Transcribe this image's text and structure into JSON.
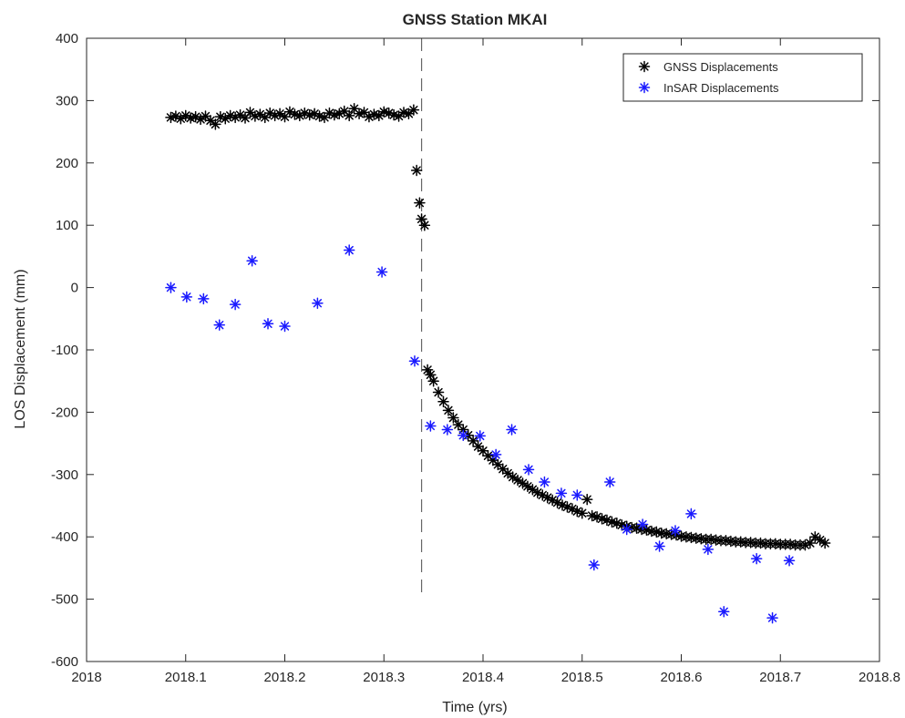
{
  "chart_data": {
    "type": "scatter",
    "title": "GNSS Station MKAI",
    "xlabel": "Time (yrs)",
    "ylabel": "LOS Displacement (mm)",
    "xlim": [
      2018,
      2018.8
    ],
    "ylim": [
      -600,
      400
    ],
    "xticks": [
      2018,
      2018.1,
      2018.2,
      2018.3,
      2018.4,
      2018.5,
      2018.6,
      2018.7,
      2018.8
    ],
    "xtick_labels": [
      "2018",
      "2018.1",
      "2018.2",
      "2018.3",
      "2018.4",
      "2018.5",
      "2018.6",
      "2018.7",
      "2018.8"
    ],
    "yticks": [
      400,
      300,
      200,
      100,
      0,
      -100,
      -200,
      -300,
      -400,
      -500,
      -600
    ],
    "ytick_labels": [
      "400",
      "300",
      "200",
      "100",
      "0",
      "-100",
      "-200",
      "-300",
      "-400",
      "-500",
      "-600"
    ],
    "grid": false,
    "box": true,
    "legend_position": "top-right",
    "marker": "asterisk",
    "reference_lines": [
      {
        "type": "vertical",
        "style": "dashed",
        "color": "#666666",
        "x": 2018.338,
        "y_range": [
          -500,
          400
        ]
      }
    ],
    "series": [
      {
        "name": "GNSS Displacements",
        "color": "#000000",
        "x": [
          2018.085,
          2018.09,
          2018.095,
          2018.1,
          2018.105,
          2018.11,
          2018.115,
          2018.12,
          2018.125,
          2018.13,
          2018.135,
          2018.14,
          2018.145,
          2018.15,
          2018.155,
          2018.16,
          2018.165,
          2018.17,
          2018.175,
          2018.18,
          2018.185,
          2018.19,
          2018.195,
          2018.2,
          2018.205,
          2018.21,
          2018.215,
          2018.22,
          2018.225,
          2018.23,
          2018.235,
          2018.24,
          2018.245,
          2018.25,
          2018.255,
          2018.26,
          2018.265,
          2018.27,
          2018.275,
          2018.28,
          2018.285,
          2018.29,
          2018.295,
          2018.3,
          2018.305,
          2018.31,
          2018.315,
          2018.32,
          2018.325,
          2018.33,
          2018.333,
          2018.336,
          2018.338,
          2018.341,
          2018.344,
          2018.347,
          2018.35,
          2018.355,
          2018.36,
          2018.365,
          2018.37,
          2018.375,
          2018.38,
          2018.385,
          2018.39,
          2018.395,
          2018.4,
          2018.405,
          2018.41,
          2018.415,
          2018.42,
          2018.425,
          2018.43,
          2018.435,
          2018.44,
          2018.445,
          2018.45,
          2018.455,
          2018.46,
          2018.465,
          2018.47,
          2018.475,
          2018.48,
          2018.485,
          2018.49,
          2018.495,
          2018.5,
          2018.505,
          2018.51,
          2018.515,
          2018.52,
          2018.525,
          2018.53,
          2018.535,
          2018.54,
          2018.545,
          2018.55,
          2018.555,
          2018.56,
          2018.565,
          2018.57,
          2018.575,
          2018.58,
          2018.585,
          2018.59,
          2018.595,
          2018.6,
          2018.605,
          2018.61,
          2018.615,
          2018.62,
          2018.625,
          2018.63,
          2018.635,
          2018.64,
          2018.645,
          2018.65,
          2018.655,
          2018.66,
          2018.665,
          2018.67,
          2018.675,
          2018.68,
          2018.685,
          2018.69,
          2018.695,
          2018.7,
          2018.705,
          2018.71,
          2018.715,
          2018.72,
          2018.725,
          2018.73,
          2018.735,
          2018.74,
          2018.745
        ],
        "y": [
          273,
          275,
          271,
          276,
          272,
          274,
          270,
          275,
          268,
          262,
          274,
          271,
          276,
          273,
          277,
          272,
          281,
          275,
          278,
          273,
          280,
          276,
          279,
          274,
          282,
          278,
          276,
          280,
          277,
          279,
          275,
          273,
          280,
          277,
          279,
          283,
          276,
          287,
          279,
          281,
          274,
          278,
          276,
          282,
          280,
          277,
          275,
          281,
          279,
          285,
          188,
          136,
          110,
          100,
          -132,
          -140,
          -150,
          -168,
          -183,
          -197,
          -209,
          -220,
          -228,
          -237,
          -246,
          -255,
          -262,
          -270,
          -277,
          -284,
          -291,
          -298,
          -304,
          -309,
          -314,
          -319,
          -324,
          -329,
          -333,
          -337,
          -341,
          -345,
          -349,
          -352,
          -355,
          -359,
          -362,
          -340,
          -366,
          -368,
          -371,
          -373,
          -376,
          -378,
          -381,
          -383,
          -385,
          -386,
          -388,
          -389,
          -391,
          -392,
          -394,
          -395,
          -396,
          -397,
          -399,
          -400,
          -401,
          -402,
          -403,
          -404,
          -404,
          -405,
          -406,
          -406,
          -407,
          -408,
          -408,
          -409,
          -409,
          -410,
          -410,
          -411,
          -411,
          -411,
          -412,
          -412,
          -412,
          -413,
          -413,
          -413,
          -410,
          -400,
          -405,
          -410
        ]
      },
      {
        "name": "InSAR Displacements",
        "color": "#1a1aff",
        "x": [
          2018.085,
          2018.101,
          2018.118,
          2018.134,
          2018.15,
          2018.167,
          2018.183,
          2018.2,
          2018.233,
          2018.265,
          2018.298,
          2018.331,
          2018.347,
          2018.364,
          2018.38,
          2018.397,
          2018.413,
          2018.429,
          2018.446,
          2018.462,
          2018.479,
          2018.495,
          2018.512,
          2018.528,
          2018.545,
          2018.561,
          2018.578,
          2018.594,
          2018.61,
          2018.627,
          2018.643,
          2018.676,
          2018.692,
          2018.709
        ],
        "y": [
          0,
          -15,
          -18,
          -60,
          -27,
          43,
          -58,
          -62,
          -25,
          60,
          25,
          -118,
          -222,
          -228,
          -237,
          -238,
          -268,
          -228,
          -292,
          -312,
          -330,
          -333,
          -445,
          -312,
          -388,
          -380,
          -415,
          -390,
          -363,
          -420,
          -520,
          -435,
          -530,
          -438
        ]
      }
    ]
  }
}
